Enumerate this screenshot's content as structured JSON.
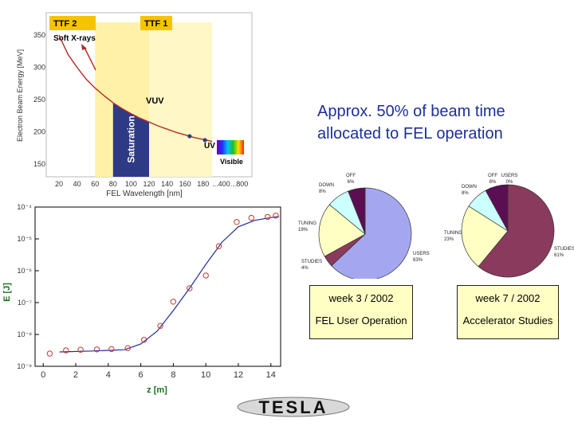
{
  "headline": "Approx. 50% of beam time allocated to FEL operation",
  "boxes": [
    {
      "week": "week 3 / 2002",
      "description": "FEL User Operation"
    },
    {
      "week": "week 7 / 2002",
      "description": "Accelerator Studies"
    }
  ],
  "logo_text": "TESLA",
  "chart_data": [
    {
      "type": "line",
      "ylabel": "Electron Beam Energy [MeV]",
      "xlabel": "FEL Wavelength [nm]",
      "x_ticks": [
        "20",
        "40",
        "60",
        "80",
        "100",
        "120",
        "140",
        "160",
        "180",
        "...400",
        "...800"
      ],
      "y_ticks": [
        150,
        200,
        250,
        300,
        350
      ],
      "ylim": [
        130,
        370
      ],
      "regions": {
        "ttf2": "TTF 2",
        "ttf1": "TTF 1",
        "saturation": "Saturation"
      },
      "annotations": {
        "soft_xrays": "Soft X-rays",
        "vuv": "VUV",
        "uv": "UV",
        "visible": "Visible"
      },
      "curve": {
        "x": [
          20,
          30,
          40,
          50,
          60,
          70,
          80,
          90,
          100,
          110,
          120,
          130,
          140,
          150,
          160,
          170,
          180,
          190
        ],
        "y": [
          350,
          320,
          300,
          282,
          268,
          256,
          245,
          236,
          228,
          221,
          215,
          209,
          204,
          199,
          195,
          191,
          188,
          185
        ]
      },
      "markers": [
        {
          "x": 165,
          "y": 193
        },
        {
          "x": 182,
          "y": 187
        }
      ],
      "colors": {
        "ttf1": "#fff7c6",
        "ttf2": "#fff2a8",
        "saturation": "#2f3a86",
        "curve": "#b52a2a"
      }
    },
    {
      "type": "scatter",
      "xlabel": "z [m]",
      "ylabel": "E [J]",
      "x_ticks": [
        0,
        2,
        4,
        6,
        8,
        10,
        12,
        14
      ],
      "y_ticks": [
        "10⁻⁹",
        "10⁻⁸",
        "10⁻⁷",
        "10⁻⁶",
        "10⁻⁵",
        "10⁻⁴"
      ],
      "xlim": [
        -0.5,
        14.6
      ],
      "y_log_range": [
        -9,
        -4
      ],
      "log_y": true,
      "points": {
        "x": [
          0.4,
          1.4,
          2.3,
          3.3,
          4.2,
          5.2,
          6.2,
          7.2,
          8.0,
          9.0,
          10.0,
          10.8,
          11.9,
          12.8,
          13.8,
          14.3
        ],
        "y_exp": [
          -8.6,
          -8.5,
          -8.48,
          -8.47,
          -8.46,
          -8.43,
          -8.17,
          -7.73,
          -6.97,
          -6.55,
          -6.15,
          -5.23,
          -4.47,
          -4.34,
          -4.31,
          -4.27
        ]
      },
      "fit": {
        "x": [
          1.0,
          3.0,
          5.0,
          6.0,
          7.0,
          8.0,
          9.0,
          10.0,
          11.0,
          12.0,
          13.0,
          14.0,
          14.5
        ],
        "y_exp": [
          -8.55,
          -8.52,
          -8.48,
          -8.3,
          -7.9,
          -7.25,
          -6.55,
          -5.8,
          -5.1,
          -4.62,
          -4.42,
          -4.33,
          -4.3
        ]
      },
      "colors": {
        "points": "#c0392b",
        "fit": "#1e2d9c"
      }
    },
    {
      "type": "pie",
      "title": "week 3 / 2002",
      "slices": [
        {
          "label": "USERS",
          "value": 63,
          "text": "USERS 63%",
          "color": "#a4a7f0"
        },
        {
          "label": "STUDIES",
          "value": 4,
          "text": "STUDIES 4%",
          "color": "#8a3a5c"
        },
        {
          "label": "TUNING",
          "value": 19,
          "text": "TUNING 19%",
          "color": "#ffffc4"
        },
        {
          "label": "DOWN",
          "value": 8,
          "text": "DOWN 8%",
          "color": "#ccffff"
        },
        {
          "label": "OFF",
          "value": 6,
          "text": "OFF 6%",
          "color": "#5b0f52"
        }
      ]
    },
    {
      "type": "pie",
      "title": "week 7 / 2002",
      "slices": [
        {
          "label": "STUDIES",
          "value": 61,
          "text": "STUDIES 61%",
          "color": "#8a3a5c"
        },
        {
          "label": "TUNING",
          "value": 23,
          "text": "TUNING 23%",
          "color": "#ffffc4"
        },
        {
          "label": "DOWN",
          "value": 8,
          "text": "DOWN 8%",
          "color": "#ccffff"
        },
        {
          "label": "OFF",
          "value": 8,
          "text": "OFF 8%",
          "color": "#5b0f52"
        },
        {
          "label": "USERS",
          "value": 0,
          "text": "USERS 0%",
          "color": "#a4a7f0"
        }
      ]
    }
  ]
}
